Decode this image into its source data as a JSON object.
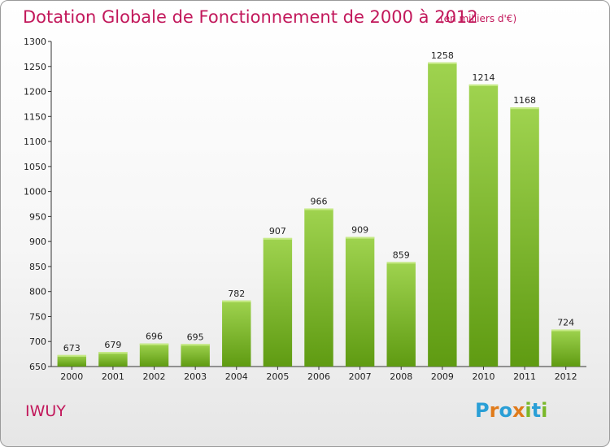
{
  "title": "Dotation Globale de Fonctionnement de 2000 à 2012",
  "subtitle": "(en milliers d'€)",
  "commune": "IWUY",
  "logo": {
    "text": "Proxiti",
    "letters": [
      "P",
      "r",
      "o",
      "x",
      "i",
      "t",
      "i"
    ],
    "colors": [
      "#2a9fd6",
      "#e07b1b",
      "#2a9fd6",
      "#e07b1b",
      "#7ab82a",
      "#2a9fd6",
      "#7ab82a"
    ]
  },
  "colors": {
    "title": "#c2185b",
    "bar_top": "#9fd34f",
    "bar_bottom": "#5f9b12"
  },
  "chart_data": {
    "type": "bar",
    "title": "Dotation Globale de Fonctionnement de 2000 à 2012",
    "subtitle": "(en milliers d'€)",
    "categories": [
      "2000",
      "2001",
      "2002",
      "2003",
      "2004",
      "2005",
      "2006",
      "2007",
      "2008",
      "2009",
      "2010",
      "2011",
      "2012"
    ],
    "values": [
      673,
      679,
      696,
      695,
      782,
      907,
      966,
      909,
      859,
      1258,
      1214,
      1168,
      724
    ],
    "ylim": [
      650,
      1300
    ],
    "yticks": [
      650,
      700,
      750,
      800,
      850,
      900,
      950,
      1000,
      1050,
      1100,
      1150,
      1200,
      1250,
      1300
    ],
    "grid": false
  }
}
